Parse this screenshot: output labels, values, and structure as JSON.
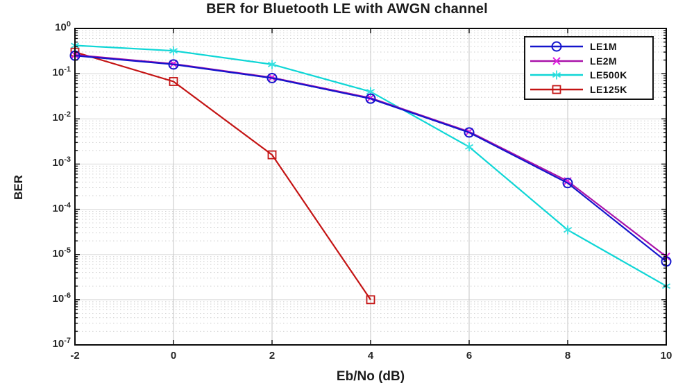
{
  "figure": {
    "title": "BER for Bluetooth LE with AWGN channel",
    "xlabel": "Eb/No (dB)",
    "ylabel": "BER"
  },
  "chart_data": {
    "type": "line",
    "title": "BER for Bluetooth LE with AWGN channel",
    "xlabel": "Eb/No (dB)",
    "ylabel": "BER",
    "x_scale": "linear",
    "y_scale": "log",
    "xlim": [
      -2,
      10
    ],
    "ylim": [
      1e-07,
      1
    ],
    "x_ticks": [
      -2,
      0,
      2,
      4,
      6,
      8,
      10
    ],
    "y_tick_exponents": [
      0,
      -1,
      -2,
      -3,
      -4,
      -5,
      -6,
      -7
    ],
    "grid": "major gridlines solid gray, log minor gridlines dotted",
    "legend_position": "top-right",
    "background_color": "#ffffff",
    "series": [
      {
        "name": "LE1M",
        "line_color": "#1414cc",
        "marker": "circle",
        "marker_color": "#1414cc",
        "x": [
          -2,
          0,
          2,
          4,
          6,
          8,
          10
        ],
        "y": [
          0.25,
          0.16,
          0.08,
          0.028,
          0.005,
          0.00038,
          7e-06
        ]
      },
      {
        "name": "LE2M",
        "line_color": "#a912a9",
        "marker": "x",
        "marker_color": "#e020e0",
        "x": [
          -2,
          0,
          2,
          4,
          6,
          8,
          10
        ],
        "y": [
          0.26,
          0.165,
          0.082,
          0.029,
          0.0052,
          0.00042,
          9e-06
        ]
      },
      {
        "name": "LE500K",
        "line_color": "#0fd6d6",
        "marker": "asterisk",
        "marker_color": "#35e0e0",
        "x": [
          -2,
          0,
          2,
          4,
          6,
          8,
          10
        ],
        "y": [
          0.42,
          0.32,
          0.16,
          0.04,
          0.0024,
          3.5e-05,
          2e-06
        ]
      },
      {
        "name": "LE125K",
        "line_color": "#c41414",
        "marker": "square",
        "marker_color": "#c41414",
        "x": [
          -2,
          0,
          2,
          4
        ],
        "y": [
          0.3,
          0.067,
          0.0016,
          1e-06
        ]
      }
    ]
  }
}
